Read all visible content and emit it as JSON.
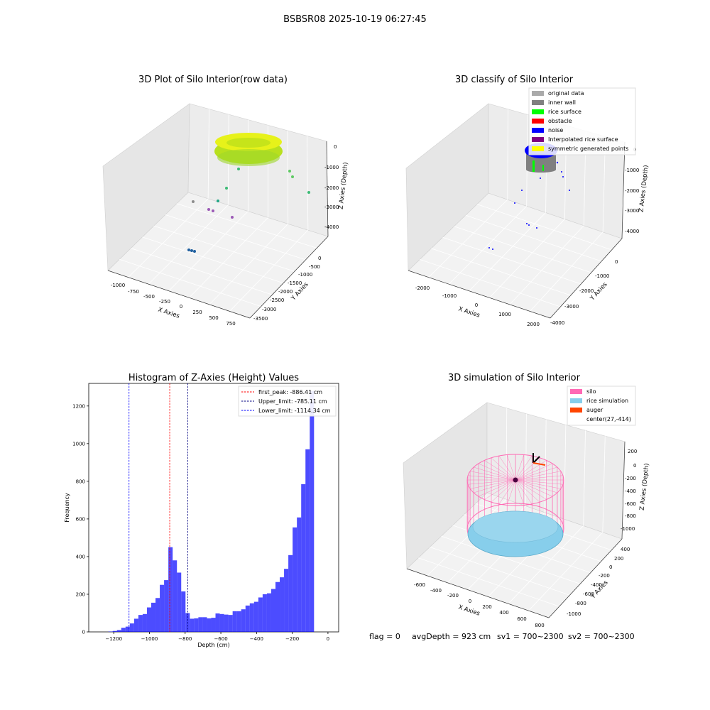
{
  "figure_title": "BSBSR08 2025-10-19 06:27:45",
  "footer": {
    "flag": "flag = 0",
    "avg": "avgDepth = 923 cm",
    "sv1": "sv1 = 700~2300",
    "sv2": "sv2 = 700~2300"
  },
  "colors": {
    "original": "#aaaaaa",
    "inner_wall": "#808080",
    "rice_surface": "#00ff00",
    "obstacle": "#ff0000",
    "noise": "#0000ff",
    "interpolated": "#800080",
    "symmetric": "#ffff00",
    "hist_bar": "#0000ff",
    "silo": "#ff69b4",
    "rice_sim": "#87ceeb",
    "auger": "#ff4500"
  },
  "chart_data": [
    {
      "type": "scatter",
      "title": "3D Plot of Silo Interior(row data)",
      "xlabel": "X Axies",
      "ylabel": "Y Axies",
      "zlabel": "Z Axies (Depth)",
      "x_ticks": [
        "-1000",
        "-750",
        "-500",
        "-250",
        "0",
        "250",
        "500",
        "750"
      ],
      "y_ticks": [
        "0",
        "-500",
        "-1000",
        "-1500",
        "-2000",
        "-2500",
        "-3000",
        "-3500"
      ],
      "z_ticks": [
        "0",
        "-1000",
        "-2000",
        "-3000",
        "-4000"
      ]
    },
    {
      "type": "scatter",
      "title": "3D classify of Silo Interior",
      "xlabel": "X Axies",
      "ylabel": "Y Axies",
      "zlabel": "Z Axies (Depth)",
      "x_ticks": [
        "-2000",
        "-1000",
        "0",
        "1000",
        "2000"
      ],
      "y_ticks": [
        "0",
        "-1000",
        "-2000",
        "-3000",
        "-4000"
      ],
      "z_ticks": [
        "0",
        "-1000",
        "-2000",
        "-3000",
        "-4000"
      ],
      "legend": [
        "original data",
        "inner wall",
        "rice surface",
        "obstacle",
        "noise",
        "Interpolated rice surface",
        "symmetric generated points"
      ],
      "legend_position": "top-right"
    },
    {
      "type": "bar",
      "title": "Histogram of Z-Axies (Height) Values",
      "xlabel": "Depth (cm)",
      "ylabel": "Frequency",
      "xlim": [
        -1340,
        60
      ],
      "ylim": [
        0,
        1320
      ],
      "x_ticks": [
        -1200,
        -1000,
        -800,
        -600,
        -400,
        -200,
        0
      ],
      "x_tick_labels": [
        "−1200",
        "−1000",
        "−800",
        "−600",
        "−400",
        "−200",
        "0"
      ],
      "y_ticks": [
        0,
        200,
        400,
        600,
        800,
        1000,
        1200
      ],
      "y_tick_labels": [
        "0",
        "200",
        "400",
        "600",
        "800",
        "1000",
        "1200"
      ],
      "bin_width": 24,
      "bins_start": -1230,
      "values": [
        2,
        5,
        10,
        22,
        28,
        45,
        70,
        90,
        95,
        130,
        155,
        180,
        250,
        275,
        450,
        380,
        315,
        215,
        100,
        70,
        72,
        78,
        78,
        72,
        75,
        98,
        95,
        92,
        90,
        110,
        110,
        120,
        140,
        152,
        160,
        183,
        200,
        205,
        228,
        265,
        290,
        335,
        408,
        555,
        608,
        785,
        970,
        1280
      ],
      "vlines": [
        {
          "label": "first_peak: -886.41 cm",
          "x": -886.41,
          "color": "#ff0000"
        },
        {
          "label": "Upper_limit: -785.11 cm",
          "x": -785.11,
          "color": "#000080"
        },
        {
          "label": "Lower_limit: -1114.34 cm",
          "x": -1114.34,
          "color": "#0000ff"
        }
      ],
      "legend_position": "top-right"
    },
    {
      "type": "scatter",
      "title": "3D simulation of Silo Interior",
      "xlabel": "X Axies",
      "ylabel": "Y Axies",
      "zlabel": "Z Axies (Depth)",
      "x_ticks": [
        "-600",
        "-400",
        "-200",
        "0",
        "200",
        "400",
        "600",
        "800"
      ],
      "y_ticks": [
        "400",
        "200",
        "0",
        "-200",
        "-400",
        "-600",
        "-800",
        "-1000"
      ],
      "z_ticks": [
        "200",
        "0",
        "-200",
        "-400",
        "-600",
        "-800",
        "-1000"
      ],
      "legend": [
        "silo",
        "rice simulation",
        "auger",
        "center(27,-414)"
      ],
      "legend_position": "top-right"
    }
  ]
}
